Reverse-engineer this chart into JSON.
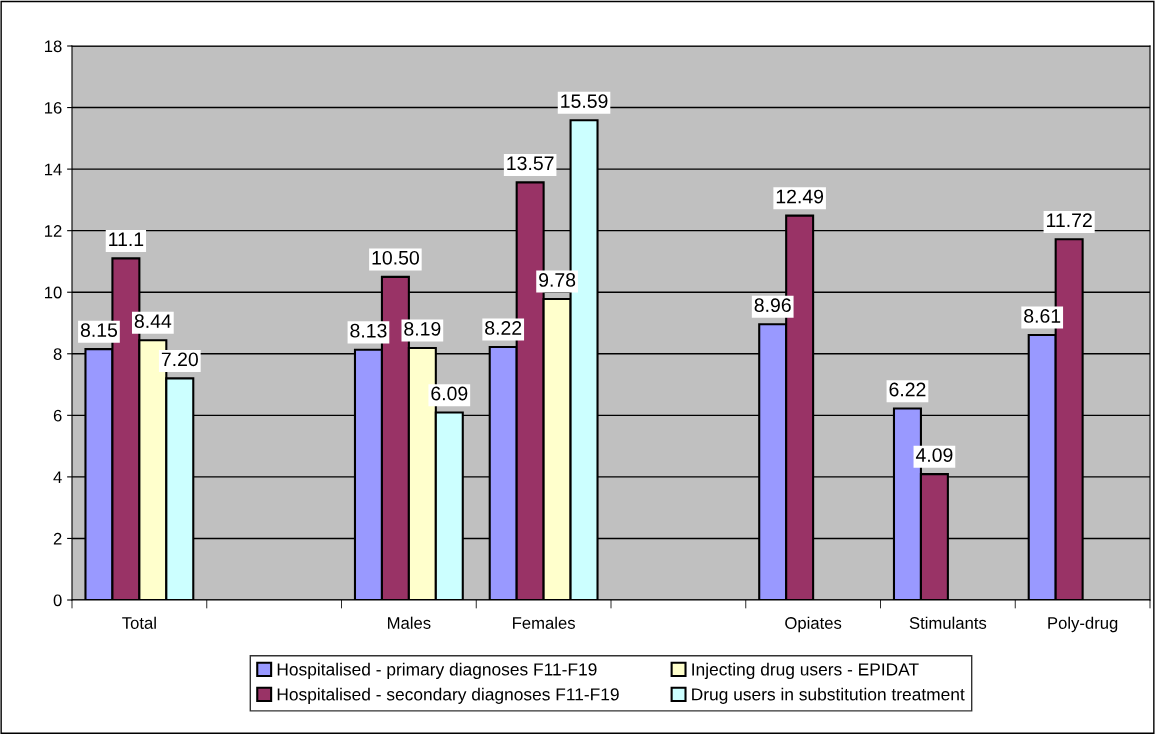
{
  "chart_data": {
    "type": "bar",
    "categories": [
      "Total",
      null,
      "Males",
      "Females",
      null,
      "Opiates",
      "Stimulants",
      "Poly-drug"
    ],
    "series": [
      {
        "name": "Hospitalised - primary diagnoses F11-F19",
        "color": "#9999ff",
        "values": [
          8.15,
          null,
          8.13,
          8.22,
          null,
          8.96,
          6.22,
          8.61
        ],
        "value_labels": [
          "8.15",
          null,
          "8.13",
          "8.22",
          null,
          "8.96",
          "6.22",
          "8.61"
        ]
      },
      {
        "name": "Hospitalised - secondary diagnoses F11-F19",
        "color": "#993366",
        "values": [
          11.1,
          null,
          10.5,
          13.57,
          null,
          12.49,
          4.09,
          11.72
        ],
        "value_labels": [
          "11.1",
          null,
          "10.50",
          "13.57",
          null,
          "12.49",
          "4.09",
          "11.72"
        ]
      },
      {
        "name": "Injecting drug users - EPIDAT",
        "color": "#ffffcc",
        "values": [
          8.44,
          null,
          8.19,
          9.78,
          null,
          null,
          null,
          null
        ],
        "value_labels": [
          "8.44",
          null,
          "8.19",
          "9.78",
          null,
          null,
          null,
          null
        ]
      },
      {
        "name": "Drug users in substitution treatment",
        "color": "#ccffff",
        "values": [
          7.2,
          null,
          6.09,
          15.59,
          null,
          null,
          null,
          null
        ],
        "value_labels": [
          "7.20",
          null,
          "6.09",
          "15.59",
          null,
          null,
          null,
          null
        ]
      }
    ],
    "ylim": [
      0,
      18
    ],
    "yticks": [
      0,
      2,
      4,
      6,
      8,
      10,
      12,
      14,
      16,
      18
    ],
    "grid": "y",
    "legend": "bottom"
  }
}
